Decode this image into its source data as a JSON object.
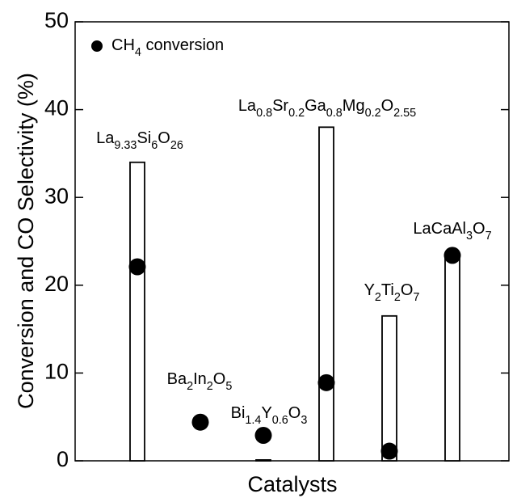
{
  "chart_data": {
    "type": "bar",
    "ylabel": "Conversion and CO Selectivity (%)",
    "xlabel": "Catalysts",
    "categories": [
      "La9.33Si6O26",
      "Ba2In2O5",
      "Bi1.4Y0.6O3",
      "La0.8Sr0.2Ga0.8Mg0.2O2.55",
      "Y2Ti2O7",
      "LaCaAl3O7"
    ],
    "series": [
      {
        "color": "#ffffff",
        "values": [
          34,
          null,
          0.1,
          38,
          16.5,
          23.3
        ]
      },
      {
        "name": "CH4 conversion",
        "color": "#000000",
        "values": [
          22.1,
          4.4,
          2.9,
          8.9,
          1.1,
          23.4
        ]
      }
    ],
    "ylim": [
      0,
      50
    ],
    "yticks": [
      0,
      10,
      20,
      30,
      40,
      50
    ],
    "legend": "upper left"
  }
}
